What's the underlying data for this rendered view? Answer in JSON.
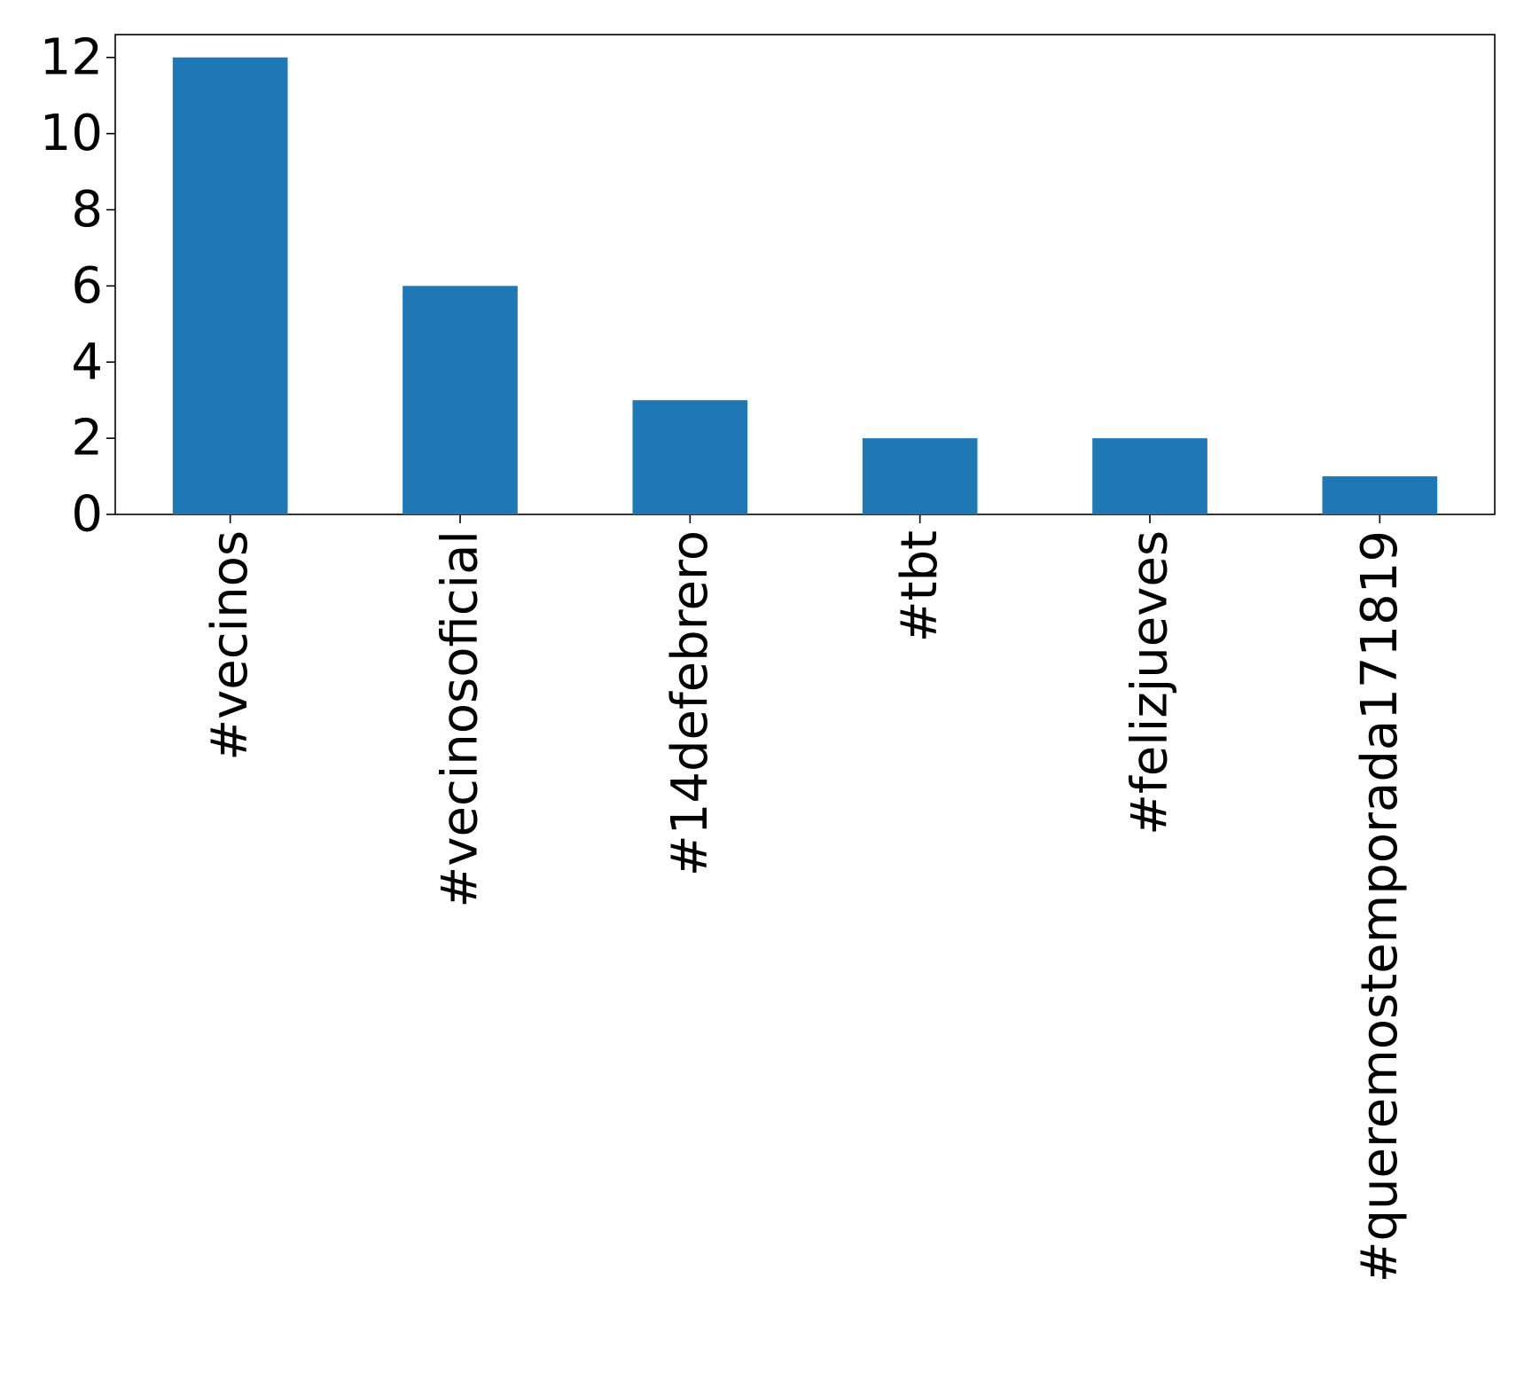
{
  "chart_data": {
    "type": "bar",
    "categories": [
      "#vecinos",
      "#vecinosoficial",
      "#14defebrero",
      "#tbt",
      "#felizjueves",
      "#queremostemporada171819"
    ],
    "values": [
      12,
      6,
      3,
      2,
      2,
      1
    ],
    "yticks": [
      "0",
      "2",
      "4",
      "6",
      "8",
      "10",
      "12"
    ],
    "ylim": [
      0,
      12.6
    ],
    "title": "",
    "xlabel": "",
    "ylabel": "",
    "grid": false,
    "bar_color": "#1f77b4"
  }
}
